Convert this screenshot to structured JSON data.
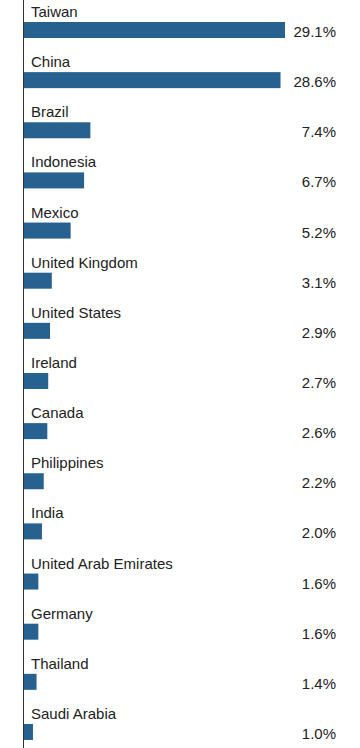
{
  "chart_data": {
    "type": "bar",
    "orientation": "horizontal",
    "categories": [
      "Taiwan",
      "China",
      "Brazil",
      "Indonesia",
      "Mexico",
      "United Kingdom",
      "United States",
      "Ireland",
      "Canada",
      "Philippines",
      "India",
      "United Arab Emirates",
      "Germany",
      "Thailand",
      "Saudi Arabia"
    ],
    "values": [
      29.1,
      28.6,
      7.4,
      6.7,
      5.2,
      3.1,
      2.9,
      2.7,
      2.6,
      2.2,
      2.0,
      1.6,
      1.6,
      1.4,
      1.0
    ],
    "value_labels": [
      "29.1%",
      "28.6%",
      "7.4%",
      "6.7%",
      "5.2%",
      "3.1%",
      "2.9%",
      "2.7%",
      "2.6%",
      "2.2%",
      "2.0%",
      "1.6%",
      "1.6%",
      "1.4%",
      "1.0%"
    ],
    "color": "#26618f",
    "data_labels": true,
    "tick_labels": "y"
  }
}
